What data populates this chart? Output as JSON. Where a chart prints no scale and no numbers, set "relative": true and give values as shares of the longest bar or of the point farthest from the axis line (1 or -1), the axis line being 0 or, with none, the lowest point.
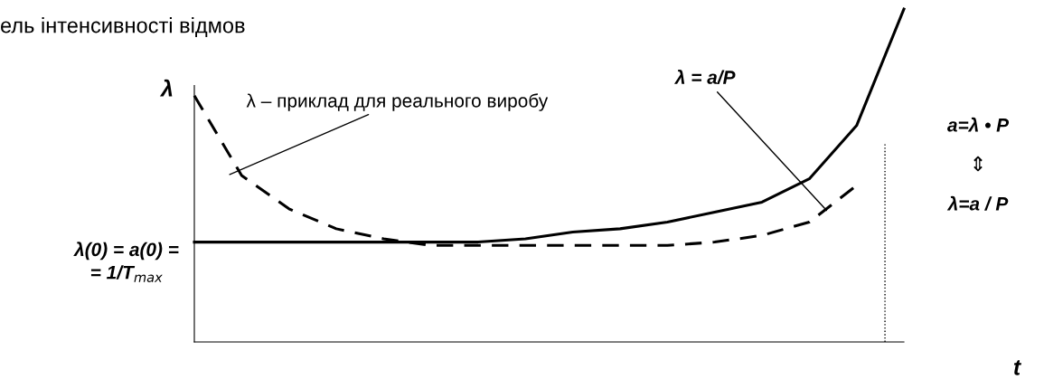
{
  "chart_data": {
    "type": "line",
    "relative": true,
    "title": "ель інтенсивності відмов",
    "xlabel": "t",
    "ylabel": "λ",
    "categories": [
      null,
      null,
      null,
      null,
      null,
      null,
      null,
      null,
      null,
      null,
      null,
      null,
      null,
      null,
      null,
      null
    ],
    "series": [
      {
        "color": "#000000",
        "line_style": "solid",
        "values": [
          0.3,
          0.3,
          0.3,
          0.3,
          0.3,
          0.3,
          0.3,
          0.31,
          0.33,
          0.34,
          0.36,
          0.39,
          0.42,
          0.49,
          0.65,
          1
        ]
      },
      {
        "color": "#000000",
        "line_style": "dashed",
        "values": [
          0.74,
          0.5,
          0.4,
          0.34,
          0.31,
          0.29,
          0.29,
          0.29,
          0.29,
          0.29,
          0.29,
          0.3,
          0.32,
          0.36,
          0.47,
          null
        ]
      }
    ],
    "annotations": [
      "λ – приклад для реального виробу",
      "λ = a/P",
      "λ(0) = a(0) =\n= 1/T$_{max}$",
      "a=λ • P",
      "⇕",
      "λ=a / P"
    ],
    "grid": false,
    "marker": "none"
  }
}
